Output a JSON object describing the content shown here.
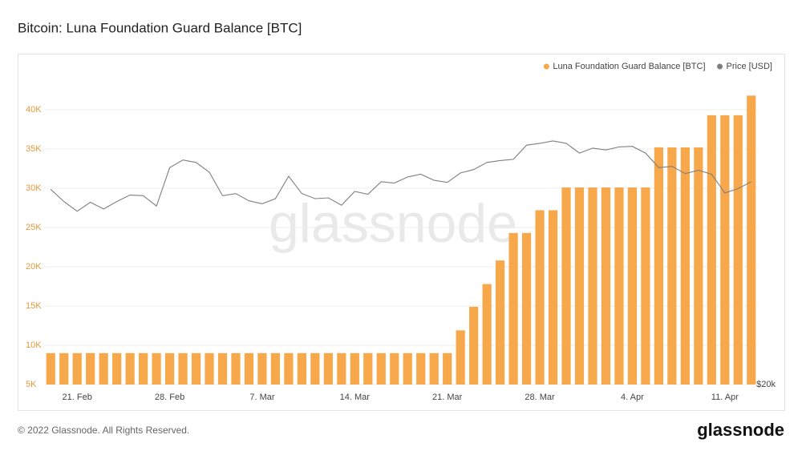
{
  "chart_data": {
    "type": "bar",
    "title": "Bitcoin: Luna Foundation Guard Balance [BTC]",
    "watermark": "glassnode",
    "footer": "© 2022 Glassnode. All Rights Reserved.",
    "logo": "glassnode",
    "categories": [
      null,
      null,
      "21. Feb",
      null,
      null,
      null,
      null,
      null,
      null,
      "28. Feb",
      null,
      null,
      null,
      null,
      null,
      null,
      "7. Mar",
      null,
      null,
      null,
      null,
      null,
      null,
      "14. Mar",
      null,
      null,
      null,
      null,
      null,
      null,
      "21. Mar",
      null,
      null,
      null,
      null,
      null,
      null,
      "28. Mar",
      null,
      null,
      null,
      null,
      null,
      null,
      "4. Apr",
      null,
      null,
      null,
      null,
      null,
      null,
      "11. Apr",
      null,
      null
    ],
    "series": [
      {
        "name": "Luna Foundation Guard Balance [BTC]",
        "color": "#f7a84a",
        "type": "bar",
        "values": [
          9000,
          9000,
          9000,
          9000,
          9000,
          9000,
          9000,
          9000,
          9000,
          9000,
          9000,
          9000,
          9000,
          9000,
          9000,
          9000,
          9000,
          9000,
          9000,
          9000,
          9000,
          9000,
          9000,
          9000,
          9000,
          9000,
          9000,
          9000,
          9000,
          9000,
          9000,
          11900,
          14900,
          17800,
          20800,
          24300,
          24300,
          27200,
          27200,
          30100,
          30100,
          30100,
          30100,
          30100,
          30100,
          30100,
          35200,
          35200,
          35200,
          35200,
          39300,
          39300,
          39300,
          41800
        ]
      },
      {
        "name": "Price [USD]",
        "color": "#7f7f7f",
        "type": "line",
        "axis": "y2",
        "values": [
          40000,
          38300,
          37000,
          38200,
          37300,
          38300,
          39200,
          39100,
          37700,
          43200,
          44400,
          44000,
          42500,
          39100,
          39400,
          38400,
          38000,
          38700,
          41900,
          39400,
          38700,
          38800,
          37800,
          39700,
          39300,
          41100,
          40900,
          41800,
          42200,
          41300,
          41000,
          42400,
          42900,
          44000,
          44300,
          44500,
          46800,
          47100,
          47500,
          47100,
          45500,
          46300,
          46000,
          46500,
          46600,
          45500,
          43200,
          43400,
          42300,
          42800,
          42200,
          39500,
          40100,
          41100
        ]
      }
    ],
    "ylim": [
      5000,
      45000
    ],
    "yticks": [
      {
        "value": 5000,
        "label": "5K"
      },
      {
        "value": 10000,
        "label": "10K"
      },
      {
        "value": 15000,
        "label": "15K"
      },
      {
        "value": 20000,
        "label": "20K"
      },
      {
        "value": 25000,
        "label": "25K"
      },
      {
        "value": 30000,
        "label": "30K"
      },
      {
        "value": 35000,
        "label": "35K"
      },
      {
        "value": 40000,
        "label": "40K"
      }
    ],
    "y2lim": [
      20000,
      61000
    ],
    "y2ticks": [
      {
        "value": 20000,
        "label": "$20k"
      }
    ],
    "y2log": true,
    "grid": true,
    "legend": "top-right"
  }
}
